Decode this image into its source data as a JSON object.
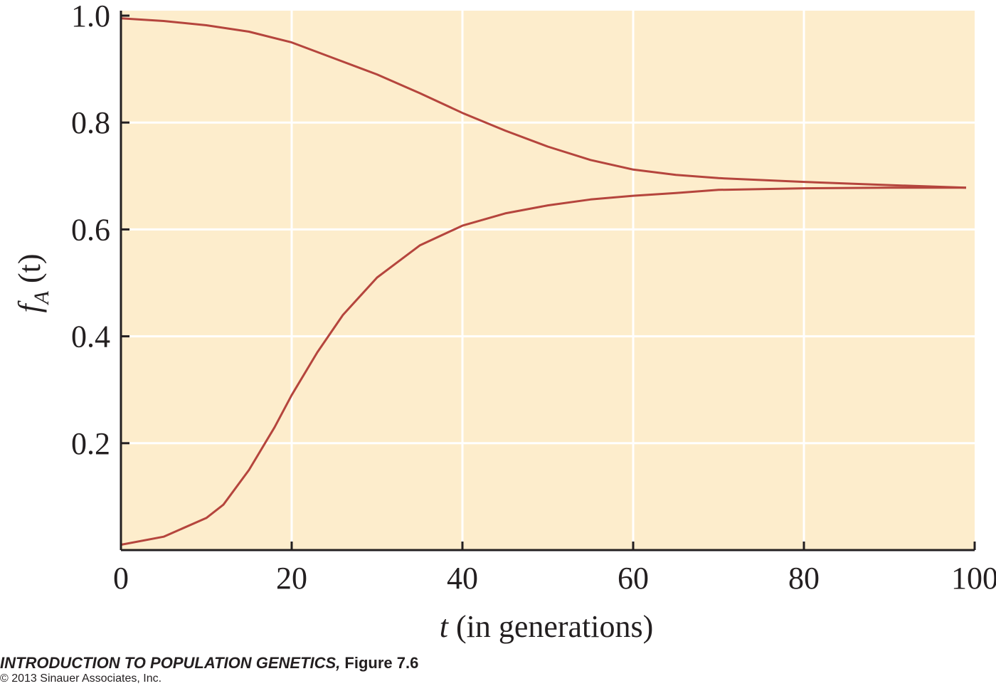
{
  "chart_data": {
    "type": "line",
    "xlabel_var": "t",
    "xlabel_rest": " (in generations)",
    "ylabel_f": "f",
    "ylabel_sub": "A",
    "ylabel_rest": " (t)",
    "xlim": [
      0,
      100
    ],
    "ylim": [
      0,
      1.0
    ],
    "x_ticks": [
      0,
      20,
      40,
      60,
      80,
      100
    ],
    "x_tick_labels": [
      "0",
      "20",
      "40",
      "60",
      "80",
      "100"
    ],
    "y_ticks": [
      0.2,
      0.4,
      0.6,
      0.8,
      1.0
    ],
    "y_tick_labels": [
      "0.2",
      "0.4",
      "0.6",
      "0.8",
      "1.0"
    ],
    "grid": true,
    "colors": {
      "plot_background": "#fdedcc",
      "grid": "#ffffff",
      "line": "#b5453d",
      "axis": "#231f20"
    },
    "series": [
      {
        "x": [
          0,
          5,
          10,
          15,
          20,
          25,
          30,
          35,
          40,
          45,
          50,
          55,
          60,
          65,
          70,
          80,
          90,
          99
        ],
        "values": [
          0.995,
          0.99,
          0.982,
          0.97,
          0.95,
          0.92,
          0.89,
          0.855,
          0.818,
          0.785,
          0.755,
          0.73,
          0.712,
          0.702,
          0.696,
          0.689,
          0.683,
          0.678
        ]
      },
      {
        "x": [
          0,
          5,
          10,
          12,
          15,
          18,
          20,
          23,
          26,
          30,
          35,
          40,
          45,
          50,
          55,
          60,
          65,
          70,
          80,
          90,
          99
        ],
        "values": [
          0.01,
          0.025,
          0.06,
          0.085,
          0.15,
          0.23,
          0.29,
          0.37,
          0.44,
          0.51,
          0.57,
          0.607,
          0.63,
          0.645,
          0.656,
          0.663,
          0.668,
          0.674,
          0.677,
          0.678,
          0.678
        ]
      }
    ]
  },
  "credits": {
    "book_title": "INTRODUCTION TO POPULATION GENETICS,",
    "figure_ref": " Figure 7.6",
    "copyright": "© 2013 Sinauer Associates, Inc."
  }
}
